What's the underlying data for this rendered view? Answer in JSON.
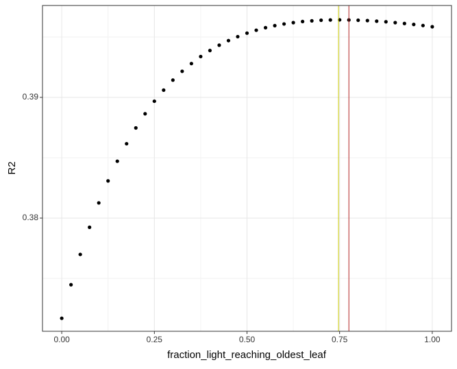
{
  "chart_data": {
    "type": "scatter",
    "x_label": "fraction_light_reaching_oldest_leaf",
    "y_label": "R2",
    "x": [
      0,
      0.025,
      0.05,
      0.075,
      0.1,
      0.125,
      0.15,
      0.175,
      0.2,
      0.225,
      0.25,
      0.275,
      0.3,
      0.325,
      0.35,
      0.375,
      0.4,
      0.425,
      0.45,
      0.475,
      0.5,
      0.525,
      0.55,
      0.575,
      0.6,
      0.625,
      0.65,
      0.675,
      0.7,
      0.725,
      0.75,
      0.775,
      0.8,
      0.825,
      0.85,
      0.875,
      0.9,
      0.925,
      0.95,
      0.975,
      1.0
    ],
    "values": [
      0.3717,
      0.37448,
      0.37699,
      0.37924,
      0.38126,
      0.38308,
      0.38471,
      0.38616,
      0.38747,
      0.38864,
      0.38968,
      0.3906,
      0.39143,
      0.39216,
      0.3928,
      0.39338,
      0.39388,
      0.39432,
      0.3947,
      0.39503,
      0.39532,
      0.39556,
      0.39577,
      0.39594,
      0.39608,
      0.39619,
      0.39628,
      0.39634,
      0.39639,
      0.39641,
      0.39642,
      0.39641,
      0.39639,
      0.39636,
      0.39631,
      0.39626,
      0.39619,
      0.39612,
      0.39604,
      0.39595,
      0.39585
    ],
    "color": "#000000",
    "xlim": [
      -0.052,
      1.052
    ],
    "ylim": [
      0.370625,
      0.39761
    ],
    "xticks": [
      {
        "value": 0,
        "label": "0.00"
      },
      {
        "value": 0.25,
        "label": "0.25"
      },
      {
        "value": 0.5,
        "label": "0.50"
      },
      {
        "value": 0.75,
        "label": "0.75"
      },
      {
        "value": 1.0,
        "label": "1.00"
      }
    ],
    "yticks": [
      0.38,
      0.39
    ],
    "grid": true,
    "minor_grid": true,
    "vlines": [
      {
        "x": 0.747,
        "color": "#c8c800"
      },
      {
        "x": 0.775,
        "color": "#b22222"
      }
    ]
  }
}
